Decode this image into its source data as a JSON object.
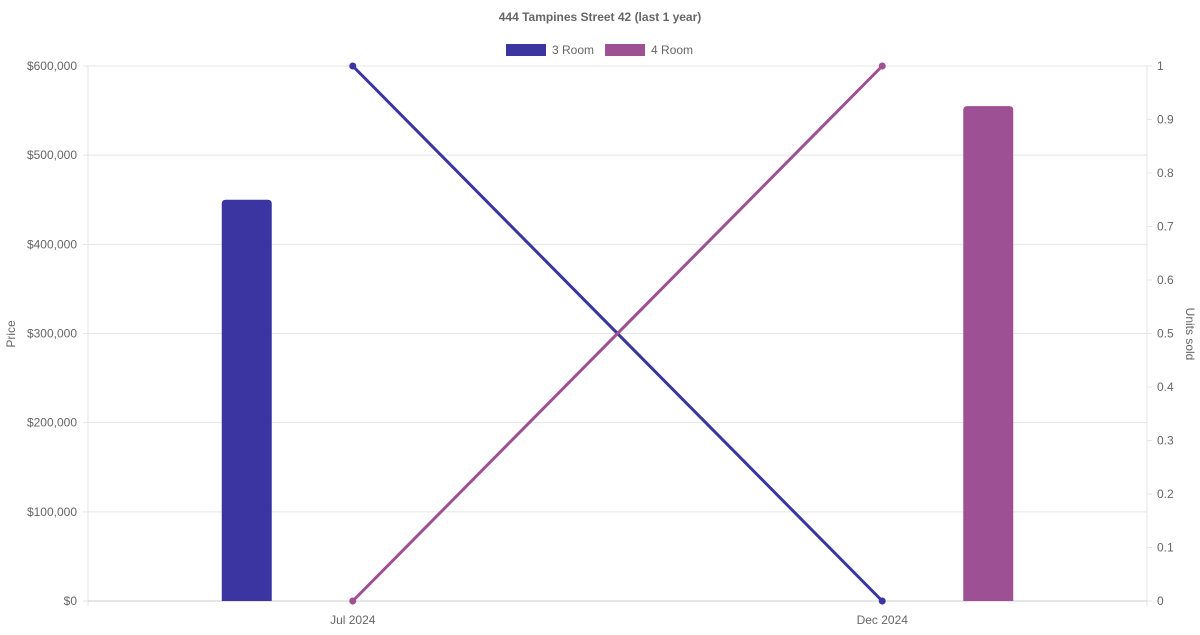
{
  "chart_data": {
    "type": "bar+line",
    "title": "444 Tampines Street 42 (last 1 year)",
    "categories": [
      "Jul 2024",
      "Dec 2024"
    ],
    "y_left": {
      "label": "Price",
      "ylim": [
        0,
        600000
      ],
      "ticks": [
        "$0",
        "$100,000",
        "$200,000",
        "$300,000",
        "$400,000",
        "$500,000",
        "$600,000"
      ],
      "tick_values": [
        0,
        100000,
        200000,
        300000,
        400000,
        500000,
        600000
      ]
    },
    "y_right": {
      "label": "Units sold",
      "ylim": [
        0,
        1
      ],
      "ticks": [
        "0",
        "0.1",
        "0.2",
        "0.3",
        "0.4",
        "0.5",
        "0.6",
        "0.7",
        "0.8",
        "0.9",
        "1"
      ],
      "tick_values": [
        0,
        0.1,
        0.2,
        0.3,
        0.4,
        0.5,
        0.6,
        0.7,
        0.8,
        0.9,
        1
      ]
    },
    "legend_position": "top",
    "grid": true,
    "series": [
      {
        "name": "3 Room",
        "color": "#3a35a0",
        "price": [
          450000,
          null
        ],
        "units_sold": [
          1,
          0
        ]
      },
      {
        "name": "4 Room",
        "color": "#9e5094",
        "price": [
          null,
          555000
        ],
        "units_sold": [
          0,
          1
        ]
      }
    ]
  }
}
